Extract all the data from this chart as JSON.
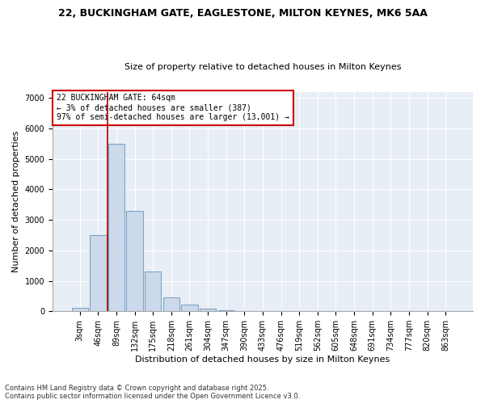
{
  "title1": "22, BUCKINGHAM GATE, EAGLESTONE, MILTON KEYNES, MK6 5AA",
  "title2": "Size of property relative to detached houses in Milton Keynes",
  "xlabel": "Distribution of detached houses by size in Milton Keynes",
  "ylabel": "Number of detached properties",
  "categories": [
    "3sqm",
    "46sqm",
    "89sqm",
    "132sqm",
    "175sqm",
    "218sqm",
    "261sqm",
    "304sqm",
    "347sqm",
    "390sqm",
    "433sqm",
    "476sqm",
    "519sqm",
    "562sqm",
    "605sqm",
    "648sqm",
    "691sqm",
    "734sqm",
    "777sqm",
    "820sqm",
    "863sqm"
  ],
  "values": [
    100,
    2500,
    5500,
    3300,
    1300,
    450,
    220,
    80,
    30,
    5,
    2,
    1,
    0,
    0,
    0,
    0,
    0,
    0,
    0,
    0,
    0
  ],
  "bar_color": "#ccd9ea",
  "bar_edge_color": "#7ca3c8",
  "vline_x": 1.5,
  "vline_color": "#aa0000",
  "annotation_title": "22 BUCKINGHAM GATE: 64sqm",
  "annotation_line1": "← 3% of detached houses are smaller (387)",
  "annotation_line2": "97% of semi-detached houses are larger (13,001) →",
  "annotation_box_facecolor": "white",
  "annotation_box_edgecolor": "#cc0000",
  "ylim": [
    0,
    7200
  ],
  "yticks": [
    0,
    1000,
    2000,
    3000,
    4000,
    5000,
    6000,
    7000
  ],
  "footer1": "Contains HM Land Registry data © Crown copyright and database right 2025.",
  "footer2": "Contains public sector information licensed under the Open Government Licence v3.0.",
  "bg_color": "#ffffff",
  "plot_bg_color": "#e8eef5",
  "grid_color": "#ffffff",
  "title1_fontsize": 9,
  "title2_fontsize": 8,
  "xlabel_fontsize": 8,
  "ylabel_fontsize": 8,
  "tick_fontsize": 7,
  "annotation_fontsize": 7,
  "footer_fontsize": 6
}
